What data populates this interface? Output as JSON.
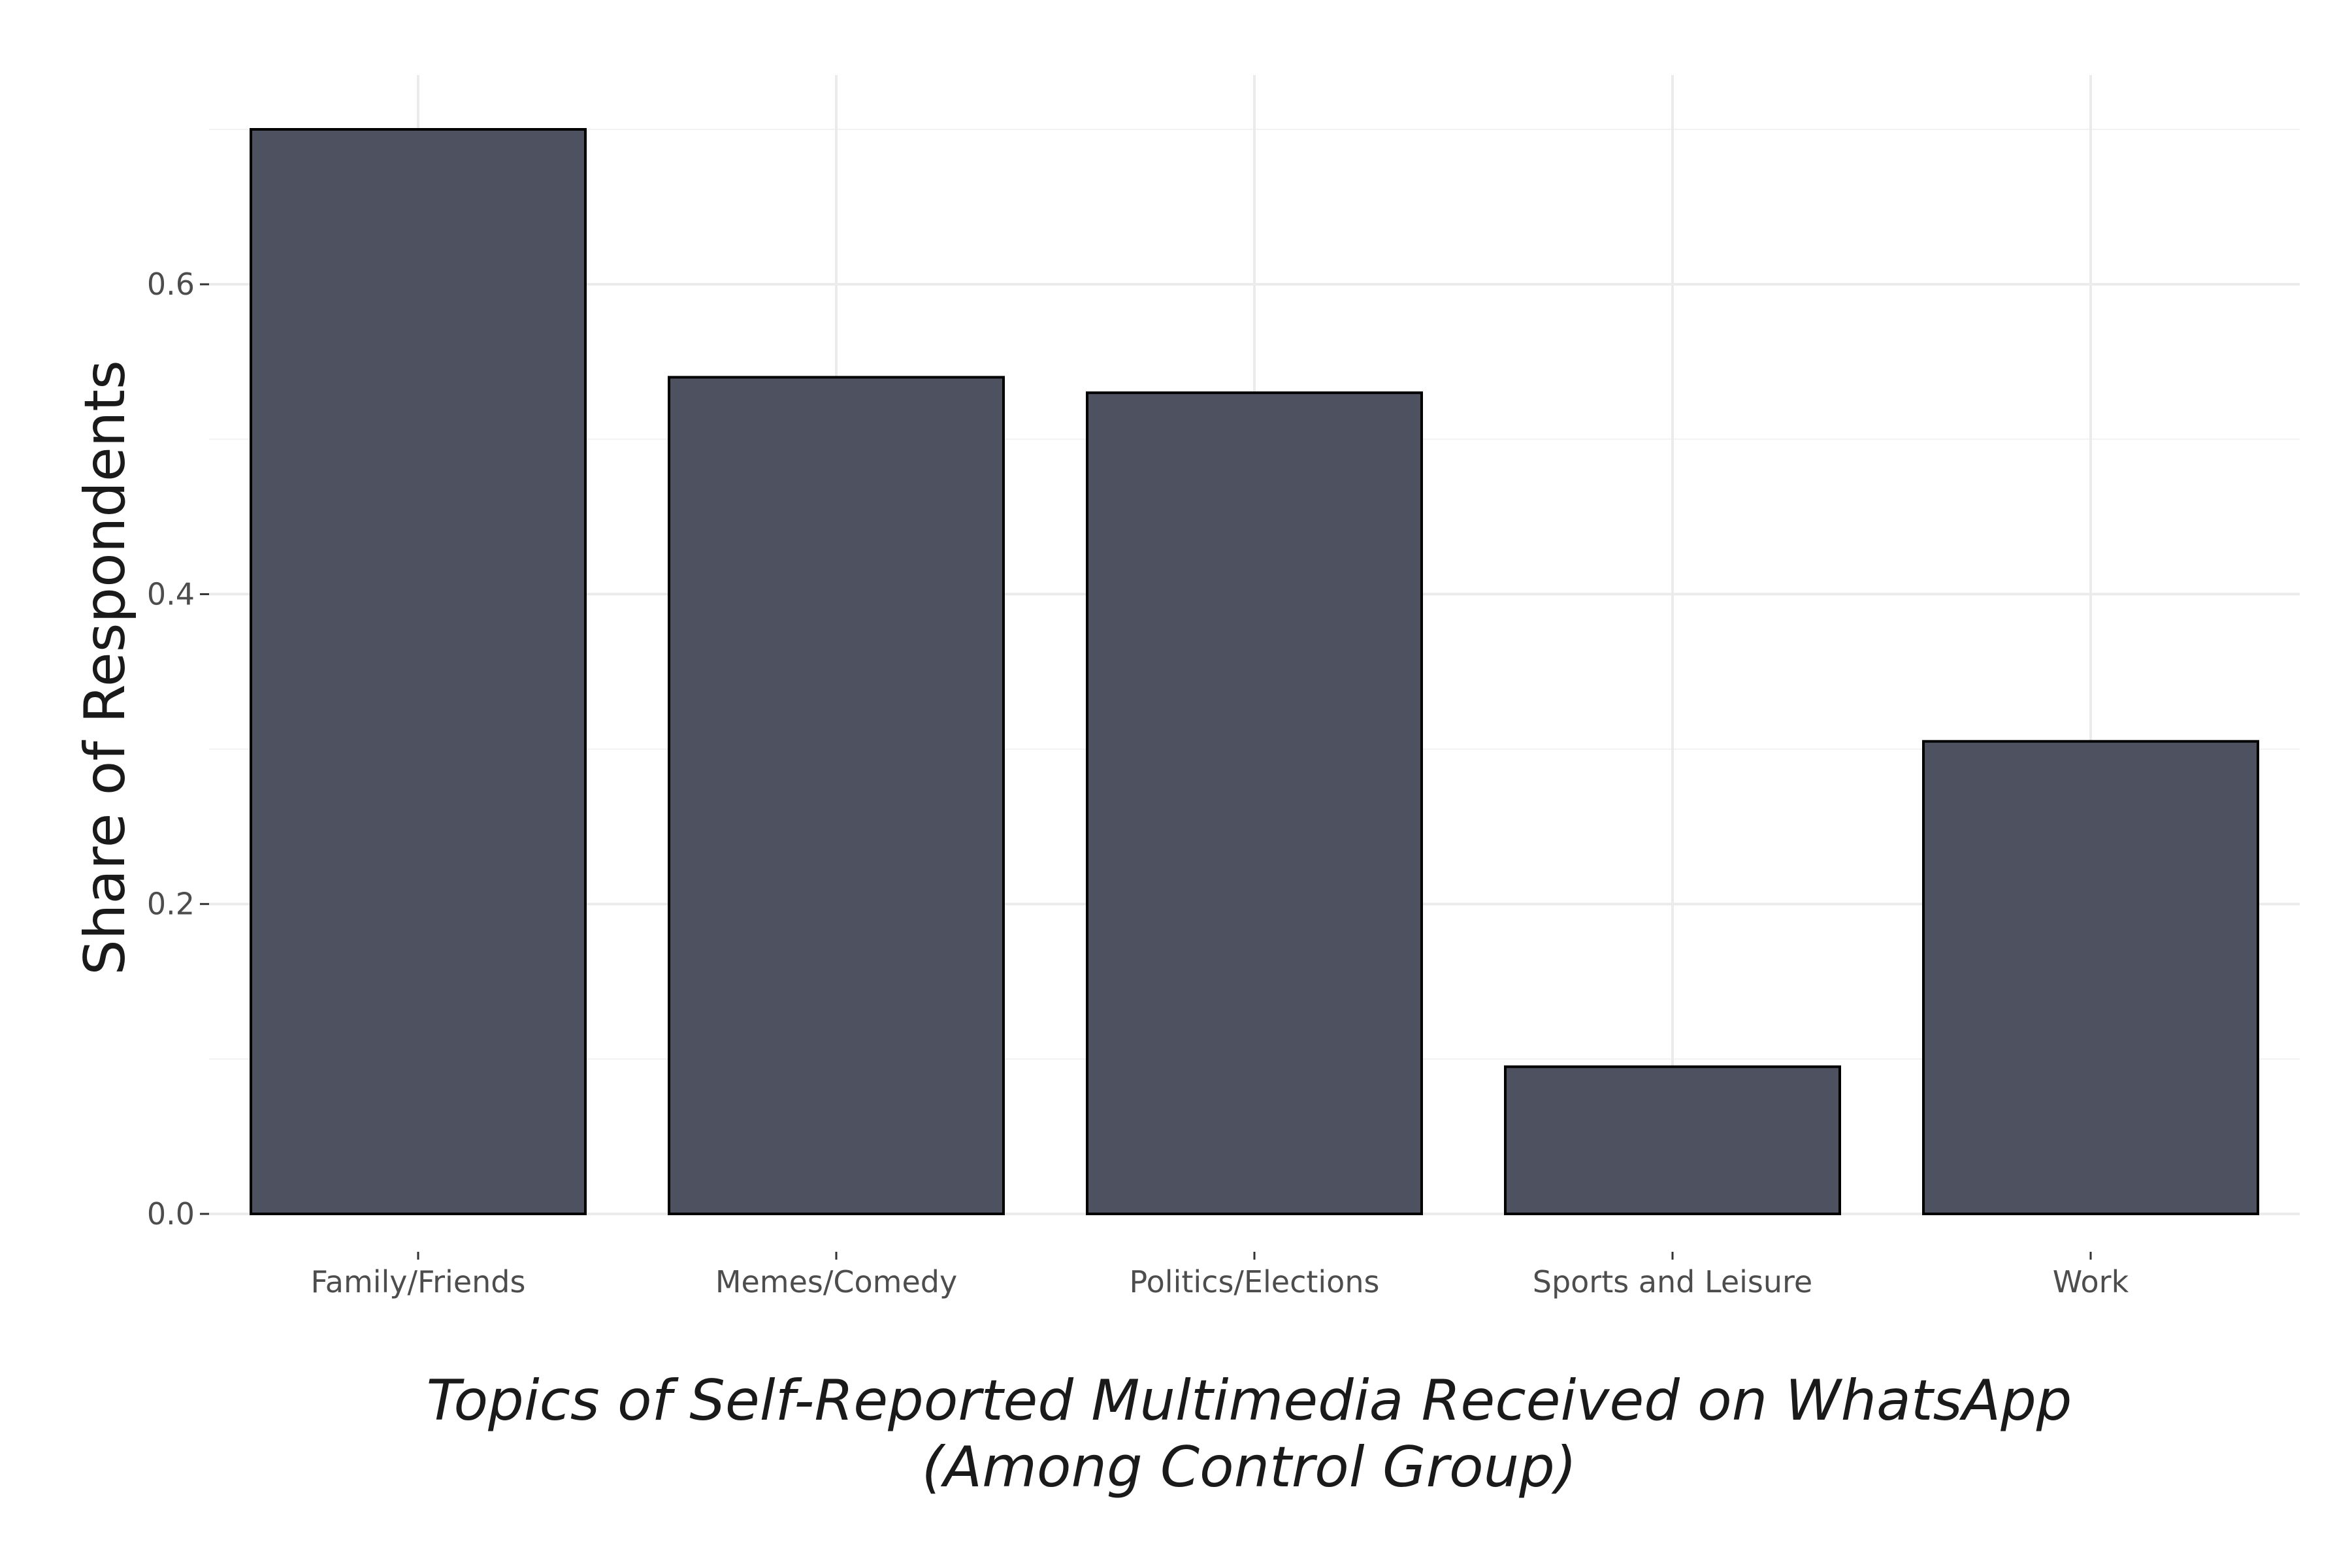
{
  "chart_data": {
    "type": "bar",
    "categories": [
      "Family/Friends",
      "Memes/Comedy",
      "Politics/Elections",
      "Sports and Leisure",
      "Work"
    ],
    "values": [
      0.7,
      0.54,
      0.53,
      0.095,
      0.305
    ],
    "xlabel_lines": [
      "Topics of Self-Reported Multimedia Received on WhatsApp",
      "(Among Control Group)"
    ],
    "ylabel": "Share of Respondents",
    "ylim": [
      0,
      0.735
    ],
    "yticks": [
      0.0,
      0.2,
      0.4,
      0.6
    ],
    "ytick_labels": [
      "0.0",
      "0.2",
      "0.4",
      "0.6"
    ],
    "grid": true,
    "bar_fill": "#4a4e5c",
    "bar_stroke": "#000000",
    "grid_color": "#ebebeb"
  }
}
